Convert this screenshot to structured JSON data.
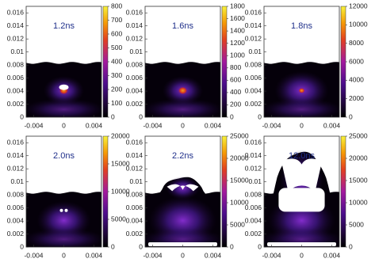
{
  "chart_data": [
    {
      "type": "heatmap",
      "title": "1.2ns",
      "xlim": [
        -0.005,
        0.005
      ],
      "xticks": [
        -0.004,
        0,
        0.004
      ],
      "ylim": [
        0,
        0.017
      ],
      "yticks": [
        0,
        0.002,
        0.004,
        0.006,
        0.008,
        0.01,
        0.012,
        0.014,
        0.016
      ],
      "clim": [
        0,
        800
      ],
      "cticks": [
        0,
        100,
        200,
        300,
        400,
        500,
        600,
        700,
        800
      ]
    },
    {
      "type": "heatmap",
      "title": "1.6ns",
      "xlim": [
        -0.005,
        0.005
      ],
      "xticks": [
        -0.004,
        0,
        0.004
      ],
      "ylim": [
        0,
        0.017
      ],
      "yticks": [
        0,
        0.002,
        0.004,
        0.006,
        0.008,
        0.01,
        0.012,
        0.014,
        0.016
      ],
      "clim": [
        0,
        1800
      ],
      "cticks": [
        0,
        200,
        400,
        600,
        800,
        1000,
        1200,
        1400,
        1600,
        1800
      ]
    },
    {
      "type": "heatmap",
      "title": "1.8ns",
      "xlim": [
        -0.005,
        0.005
      ],
      "xticks": [
        -0.004,
        0,
        0.004
      ],
      "ylim": [
        0,
        0.017
      ],
      "yticks": [
        0,
        0.002,
        0.004,
        0.006,
        0.008,
        0.01,
        0.012,
        0.014,
        0.016
      ],
      "clim": [
        0,
        12000
      ],
      "cticks": [
        0,
        2000,
        4000,
        6000,
        8000,
        10000,
        12000
      ]
    },
    {
      "type": "heatmap",
      "title": "2.0ns",
      "xlim": [
        -0.005,
        0.005
      ],
      "xticks": [
        -0.004,
        0,
        0.004
      ],
      "ylim": [
        0,
        0.017
      ],
      "yticks": [
        0,
        0.002,
        0.004,
        0.006,
        0.008,
        0.01,
        0.012,
        0.014,
        0.016
      ],
      "clim": [
        0,
        20000
      ],
      "cticks": [
        0,
        5000,
        10000,
        15000,
        20000
      ]
    },
    {
      "type": "heatmap",
      "title": "2.2ns",
      "xlim": [
        -0.005,
        0.005
      ],
      "xticks": [
        -0.004,
        0,
        0.004
      ],
      "ylim": [
        0,
        0.017
      ],
      "yticks": [
        0,
        0.002,
        0.004,
        0.006,
        0.008,
        0.01,
        0.012,
        0.014,
        0.016
      ],
      "clim": [
        0,
        25000
      ],
      "cticks": [
        0,
        5000,
        10000,
        15000,
        20000,
        25000
      ]
    },
    {
      "type": "heatmap",
      "title": "12.0ns",
      "xlim": [
        -0.005,
        0.005
      ],
      "xticks": [
        -0.004,
        0,
        0.004
      ],
      "ylim": [
        0,
        0.017
      ],
      "yticks": [
        0,
        0.002,
        0.004,
        0.006,
        0.008,
        0.01,
        0.012,
        0.014,
        0.016
      ],
      "clim": [
        0,
        25000
      ],
      "cticks": [
        0,
        5000,
        10000,
        15000,
        20000,
        25000
      ]
    }
  ]
}
